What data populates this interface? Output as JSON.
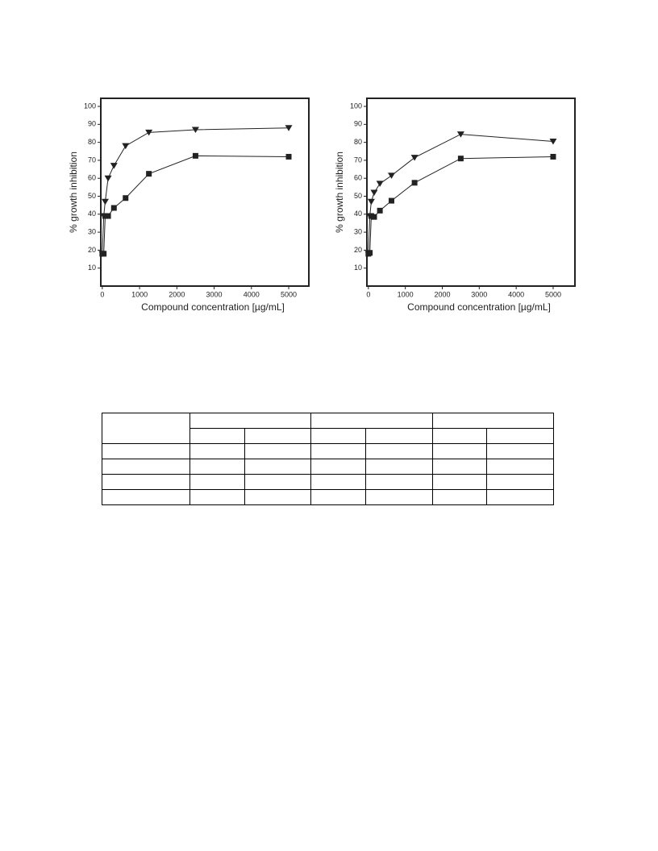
{
  "chart_data": [
    {
      "type": "line",
      "ylabel": "% growth inhibition",
      "xlabel": "Compound concentration [µg/mL]",
      "x": [
        0,
        39,
        78,
        156,
        312,
        625,
        1250,
        2500,
        5000
      ],
      "series": [
        {
          "name": null,
          "color": "#222222",
          "marker": "triangle-down",
          "values": [
            18,
            39,
            47,
            60,
            67,
            78,
            85.5,
            87,
            88
          ]
        },
        {
          "name": null,
          "color": "#222222",
          "marker": "square",
          "values": [
            18,
            18,
            39,
            39,
            43.5,
            49,
            62.5,
            72.5,
            72
          ]
        }
      ],
      "xlim": [
        -40,
        5540
      ],
      "xticks": [
        0,
        1000,
        2000,
        3000,
        4000,
        5000
      ],
      "ylim": [
        0,
        104.5
      ],
      "yticks": [
        10,
        20,
        30,
        40,
        50,
        60,
        70,
        80,
        90,
        100
      ]
    },
    {
      "type": "line",
      "ylabel": "% growth inhibition",
      "xlabel": "Compound concentration [µg/mL]",
      "x": [
        0,
        39,
        78,
        156,
        312,
        625,
        1250,
        2500,
        5000
      ],
      "series": [
        {
          "name": null,
          "color": "#222222",
          "marker": "triangle-down",
          "values": [
            18,
            39,
            47,
            52,
            57,
            61.5,
            71.5,
            84.5,
            80.5
          ]
        },
        {
          "name": null,
          "color": "#222222",
          "marker": "square",
          "values": [
            18,
            18.5,
            39,
            38.5,
            42,
            47.5,
            57.5,
            71,
            72
          ]
        }
      ],
      "xlim": [
        -40,
        5590
      ],
      "xticks": [
        0,
        1000,
        2000,
        3000,
        4000,
        5000
      ],
      "ylim": [
        0,
        104.5
      ],
      "yticks": [
        10,
        20,
        30,
        40,
        50,
        60,
        70,
        80,
        90,
        100
      ]
    }
  ]
}
